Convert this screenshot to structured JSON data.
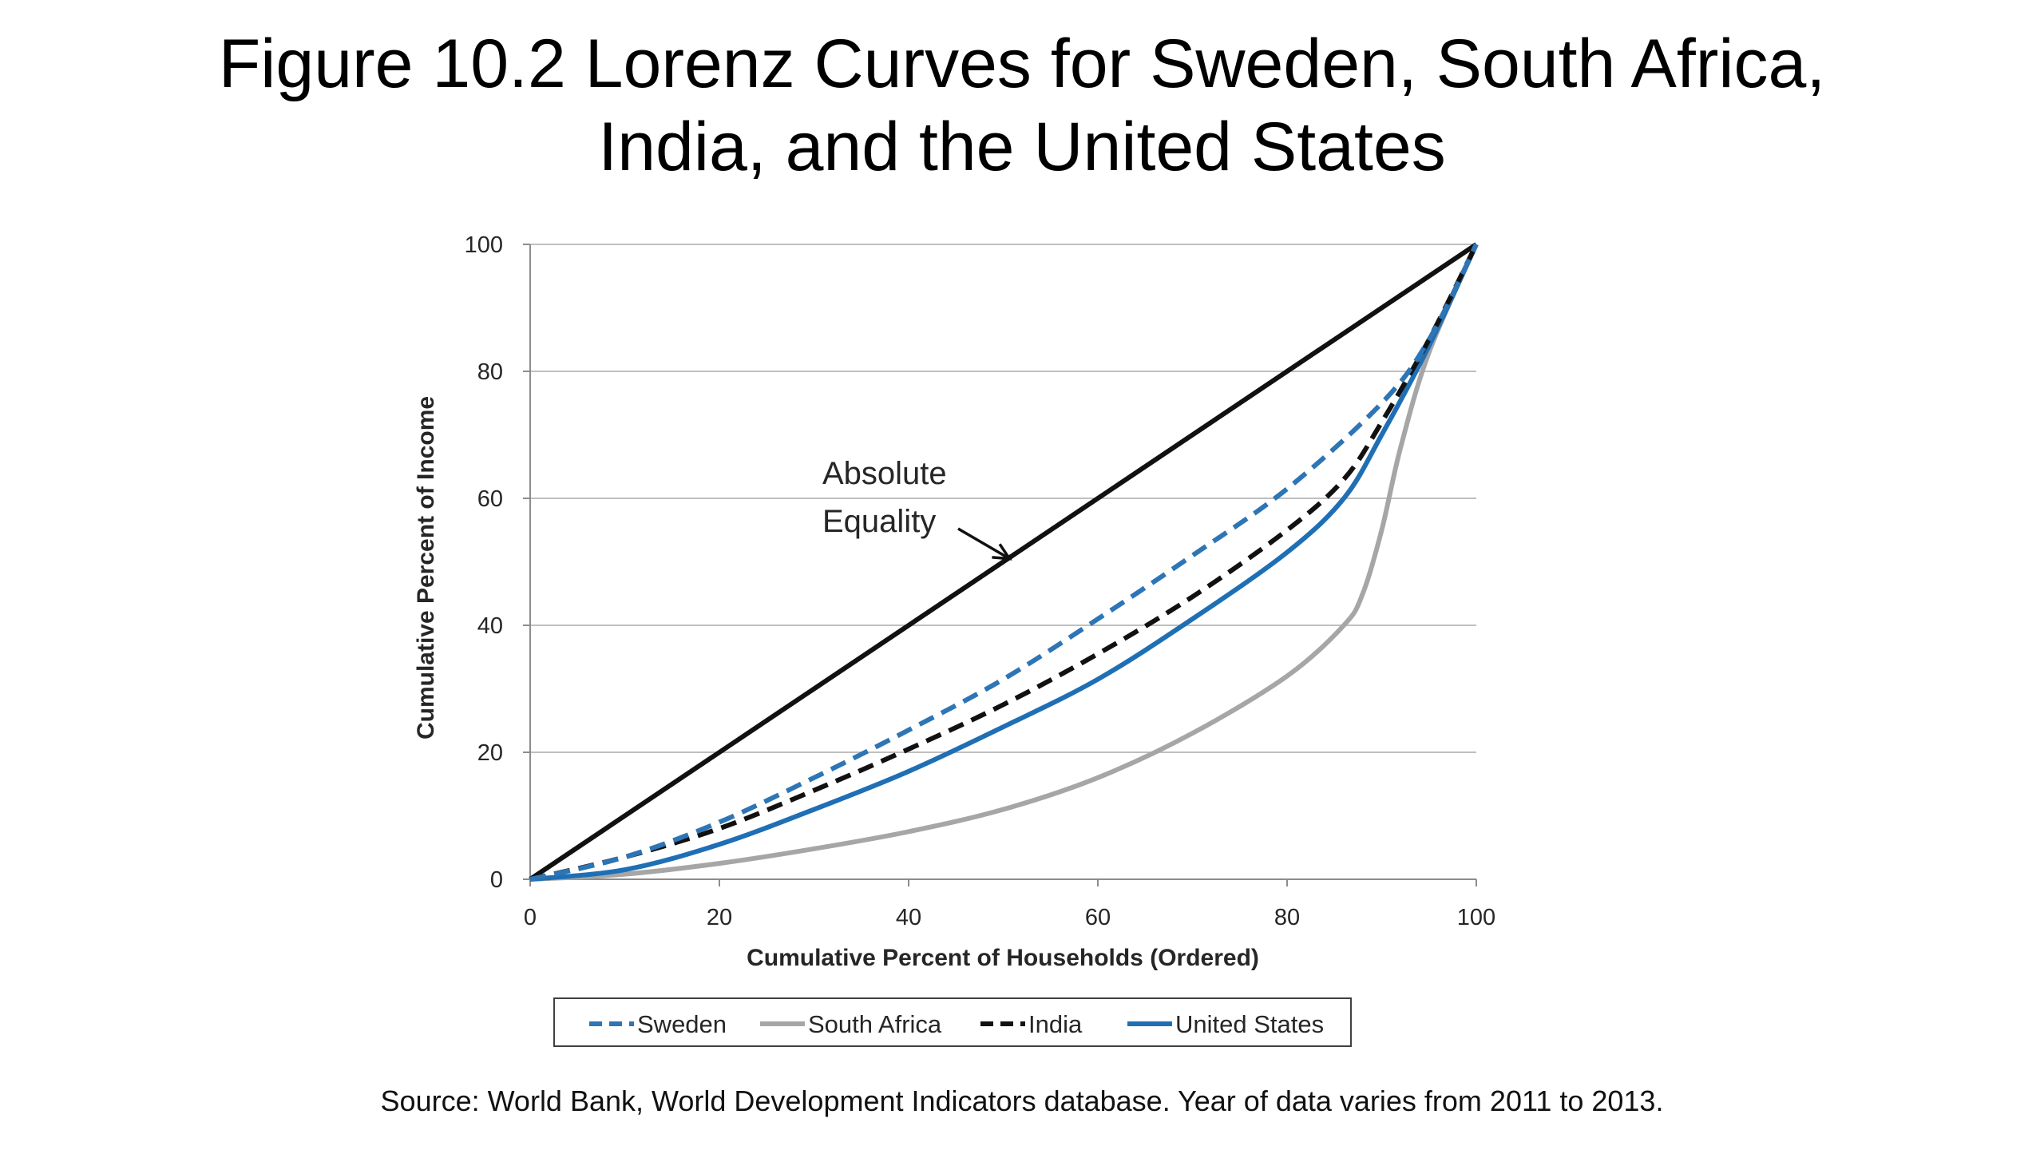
{
  "slide": {
    "title_line1": "Figure 10.2 Lorenz Curves for Sweden, South Africa,",
    "title_line2": "India, and the United States",
    "source": "Source: World Bank, World Development Indicators database. Year of data varies from 2011 to 2013."
  },
  "chart_data": {
    "type": "line",
    "title": "",
    "xlabel": "Cumulative Percent of Households (Ordered)",
    "ylabel": "Cumulative Percent of Income",
    "xlim": [
      0,
      100
    ],
    "ylim": [
      0,
      100
    ],
    "xticks": [
      0,
      20,
      40,
      60,
      80,
      100
    ],
    "yticks": [
      0,
      20,
      40,
      60,
      80,
      100
    ],
    "grid": "horizontal",
    "legend_position": "bottom",
    "annotation": {
      "line1": "Absolute",
      "line2": "Equality",
      "arrow_target": [
        51,
        51
      ]
    },
    "series": [
      {
        "key": "equality",
        "in_legend": false,
        "color": "#111111",
        "dash": false,
        "x": [
          0,
          100
        ],
        "y": [
          0,
          100
        ]
      },
      {
        "key": "sweden",
        "name": "Sweden",
        "in_legend": true,
        "color": "#2e75b6",
        "dash": true,
        "x": [
          0,
          10,
          20,
          30,
          40,
          50,
          60,
          70,
          80,
          90,
          95,
          100
        ],
        "y": [
          0,
          3.5,
          9,
          16,
          23.5,
          31.5,
          41,
          51,
          61.5,
          75,
          85,
          100
        ]
      },
      {
        "key": "south_africa",
        "name": "South Africa",
        "in_legend": true,
        "color": "#a6a6a6",
        "dash": false,
        "x": [
          0,
          10,
          20,
          30,
          40,
          50,
          60,
          70,
          80,
          86,
          88,
          90,
          92,
          95,
          100
        ],
        "y": [
          0,
          0.8,
          2.5,
          4.8,
          7.5,
          11,
          16,
          23,
          32,
          40,
          45,
          55,
          68,
          83,
          100
        ]
      },
      {
        "key": "india",
        "name": "India",
        "in_legend": true,
        "color": "#111111",
        "dash": true,
        "x": [
          0,
          10,
          20,
          30,
          40,
          50,
          60,
          70,
          80,
          86,
          90,
          95,
          100
        ],
        "y": [
          0,
          3.5,
          8,
          14,
          20.5,
          27.5,
          35.5,
          44.5,
          55,
          63,
          72,
          85,
          100
        ]
      },
      {
        "key": "united_states",
        "name": "United States",
        "in_legend": true,
        "color": "#1f6fb5",
        "dash": false,
        "x": [
          0,
          10,
          20,
          30,
          40,
          50,
          60,
          70,
          80,
          86,
          90,
          95,
          100
        ],
        "y": [
          0,
          1.5,
          5.5,
          11,
          17,
          24,
          31.5,
          41,
          51.5,
          60,
          70,
          84,
          100
        ]
      }
    ]
  }
}
